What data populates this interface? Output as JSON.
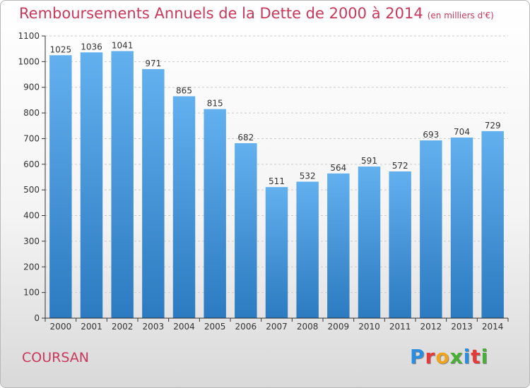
{
  "header": {
    "title": "Remboursements Annuels de la Dette de 2000 à 2014",
    "unit": "(en milliers d'€)"
  },
  "footer": {
    "city": "COURSAN",
    "logo_text": "Proxiti",
    "logo_colors": [
      "#2a8de0",
      "#e8393a",
      "#f0a41c",
      "#46b035",
      "#2a8de0",
      "#e8393a",
      "#46b035"
    ]
  },
  "chart_data": {
    "type": "bar",
    "title": "Remboursements Annuels de la Dette de 2000 à 2014",
    "subtitle": "(en milliers d'€)",
    "xlabel": "",
    "ylabel": "",
    "categories": [
      "2000",
      "2001",
      "2002",
      "2003",
      "2004",
      "2005",
      "2006",
      "2007",
      "2008",
      "2009",
      "2010",
      "2011",
      "2012",
      "2013",
      "2014"
    ],
    "values": [
      1025,
      1036,
      1041,
      971,
      865,
      815,
      682,
      511,
      532,
      564,
      591,
      572,
      693,
      704,
      729
    ],
    "ylim": [
      0,
      1100
    ],
    "yticks": [
      0,
      100,
      200,
      300,
      400,
      500,
      600,
      700,
      800,
      900,
      1000,
      1100
    ],
    "grid": true,
    "legend": "none",
    "colors": {
      "bar_top": "#62b0ee",
      "bar_bottom": "#2c7ac0",
      "label": "#333333",
      "axis": "#333333",
      "grid": "#cccccc"
    }
  }
}
